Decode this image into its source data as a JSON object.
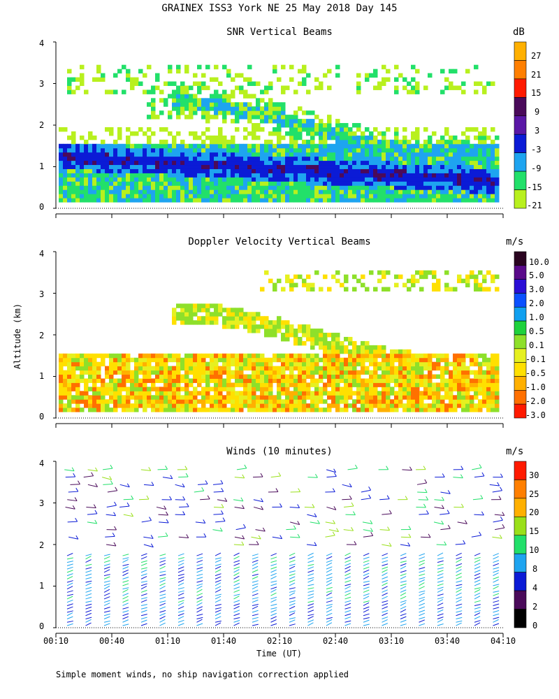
{
  "header": {
    "title": "GRAINEX ISS3 York NE  25 May 2018 Day 145"
  },
  "footer": {
    "note": "Simple moment winds, no ship navigation correction applied"
  },
  "axes": {
    "ylabel": "Altitude (km)",
    "xlabel": "Time (UT)",
    "yticks": [
      "0",
      "1",
      "2",
      "3",
      "4"
    ],
    "xticks": [
      "00:10",
      "00:40",
      "01:10",
      "01:40",
      "02:10",
      "02:40",
      "03:10",
      "03:40",
      "04:10"
    ]
  },
  "chart_data": [
    {
      "type": "heatmap",
      "title": "SNR Vertical Beams",
      "units": "dB",
      "xlabel": "Time (UT)",
      "ylabel": "Altitude (km)",
      "ylim": [
        0,
        4
      ],
      "xlim": [
        "00:10",
        "04:10"
      ],
      "colorbar": {
        "labels": [
          "27",
          "21",
          "15",
          "9",
          "3",
          "-3",
          "-9",
          "-15",
          "-21"
        ],
        "colors": [
          "#ffb000",
          "#ff7f00",
          "#ff1a00",
          "#4a0a5a",
          "#5a17a6",
          "#0b1bd6",
          "#1ea4f0",
          "#22e06a",
          "#b8f01e"
        ]
      },
      "layers": [
        {
          "desc": "strong band",
          "y_center": [
            1.2,
            1.05,
            0.9,
            0.8,
            0.65,
            0.6
          ],
          "x": [
            "00:10",
            "01:10",
            "01:40",
            "02:40",
            "03:40",
            "04:10"
          ]
        }
      ]
    },
    {
      "type": "heatmap",
      "title": "Doppler Velocity Vertical Beams",
      "units": "m/s",
      "xlabel": "Time (UT)",
      "ylabel": "Altitude (km)",
      "ylim": [
        0,
        4
      ],
      "xlim": [
        "00:10",
        "04:10"
      ],
      "colorbar": {
        "labels": [
          "10.0",
          "5.0",
          "3.0",
          "2.0",
          "1.0",
          "0.5",
          "0.1",
          "-0.1",
          "-0.5",
          "-1.0",
          "-2.0",
          "-3.0"
        ],
        "colors": [
          "#2a0420",
          "#5a0a8a",
          "#2a0ed6",
          "#0a50ff",
          "#10a0f0",
          "#1ed23c",
          "#8ee02a",
          "#e6f020",
          "#ffe000",
          "#ffb000",
          "#ff7000",
          "#ff1a00"
        ]
      }
    },
    {
      "type": "scatter",
      "title": "Winds (10 minutes)",
      "units": "m/s",
      "xlabel": "Time (UT)",
      "ylabel": "Altitude (km)",
      "ylim": [
        0,
        4
      ],
      "xlim": [
        "00:10",
        "04:10"
      ],
      "colorbar": {
        "labels": [
          "30",
          "25",
          "20",
          "15",
          "10",
          "8",
          "4",
          "2",
          "0"
        ],
        "colors": [
          "#ff1a00",
          "#ff7f00",
          "#ffb000",
          "#9ae01a",
          "#22e06a",
          "#1ea4f0",
          "#0b1bd6",
          "#4a0a5a",
          "#000000"
        ]
      }
    }
  ]
}
